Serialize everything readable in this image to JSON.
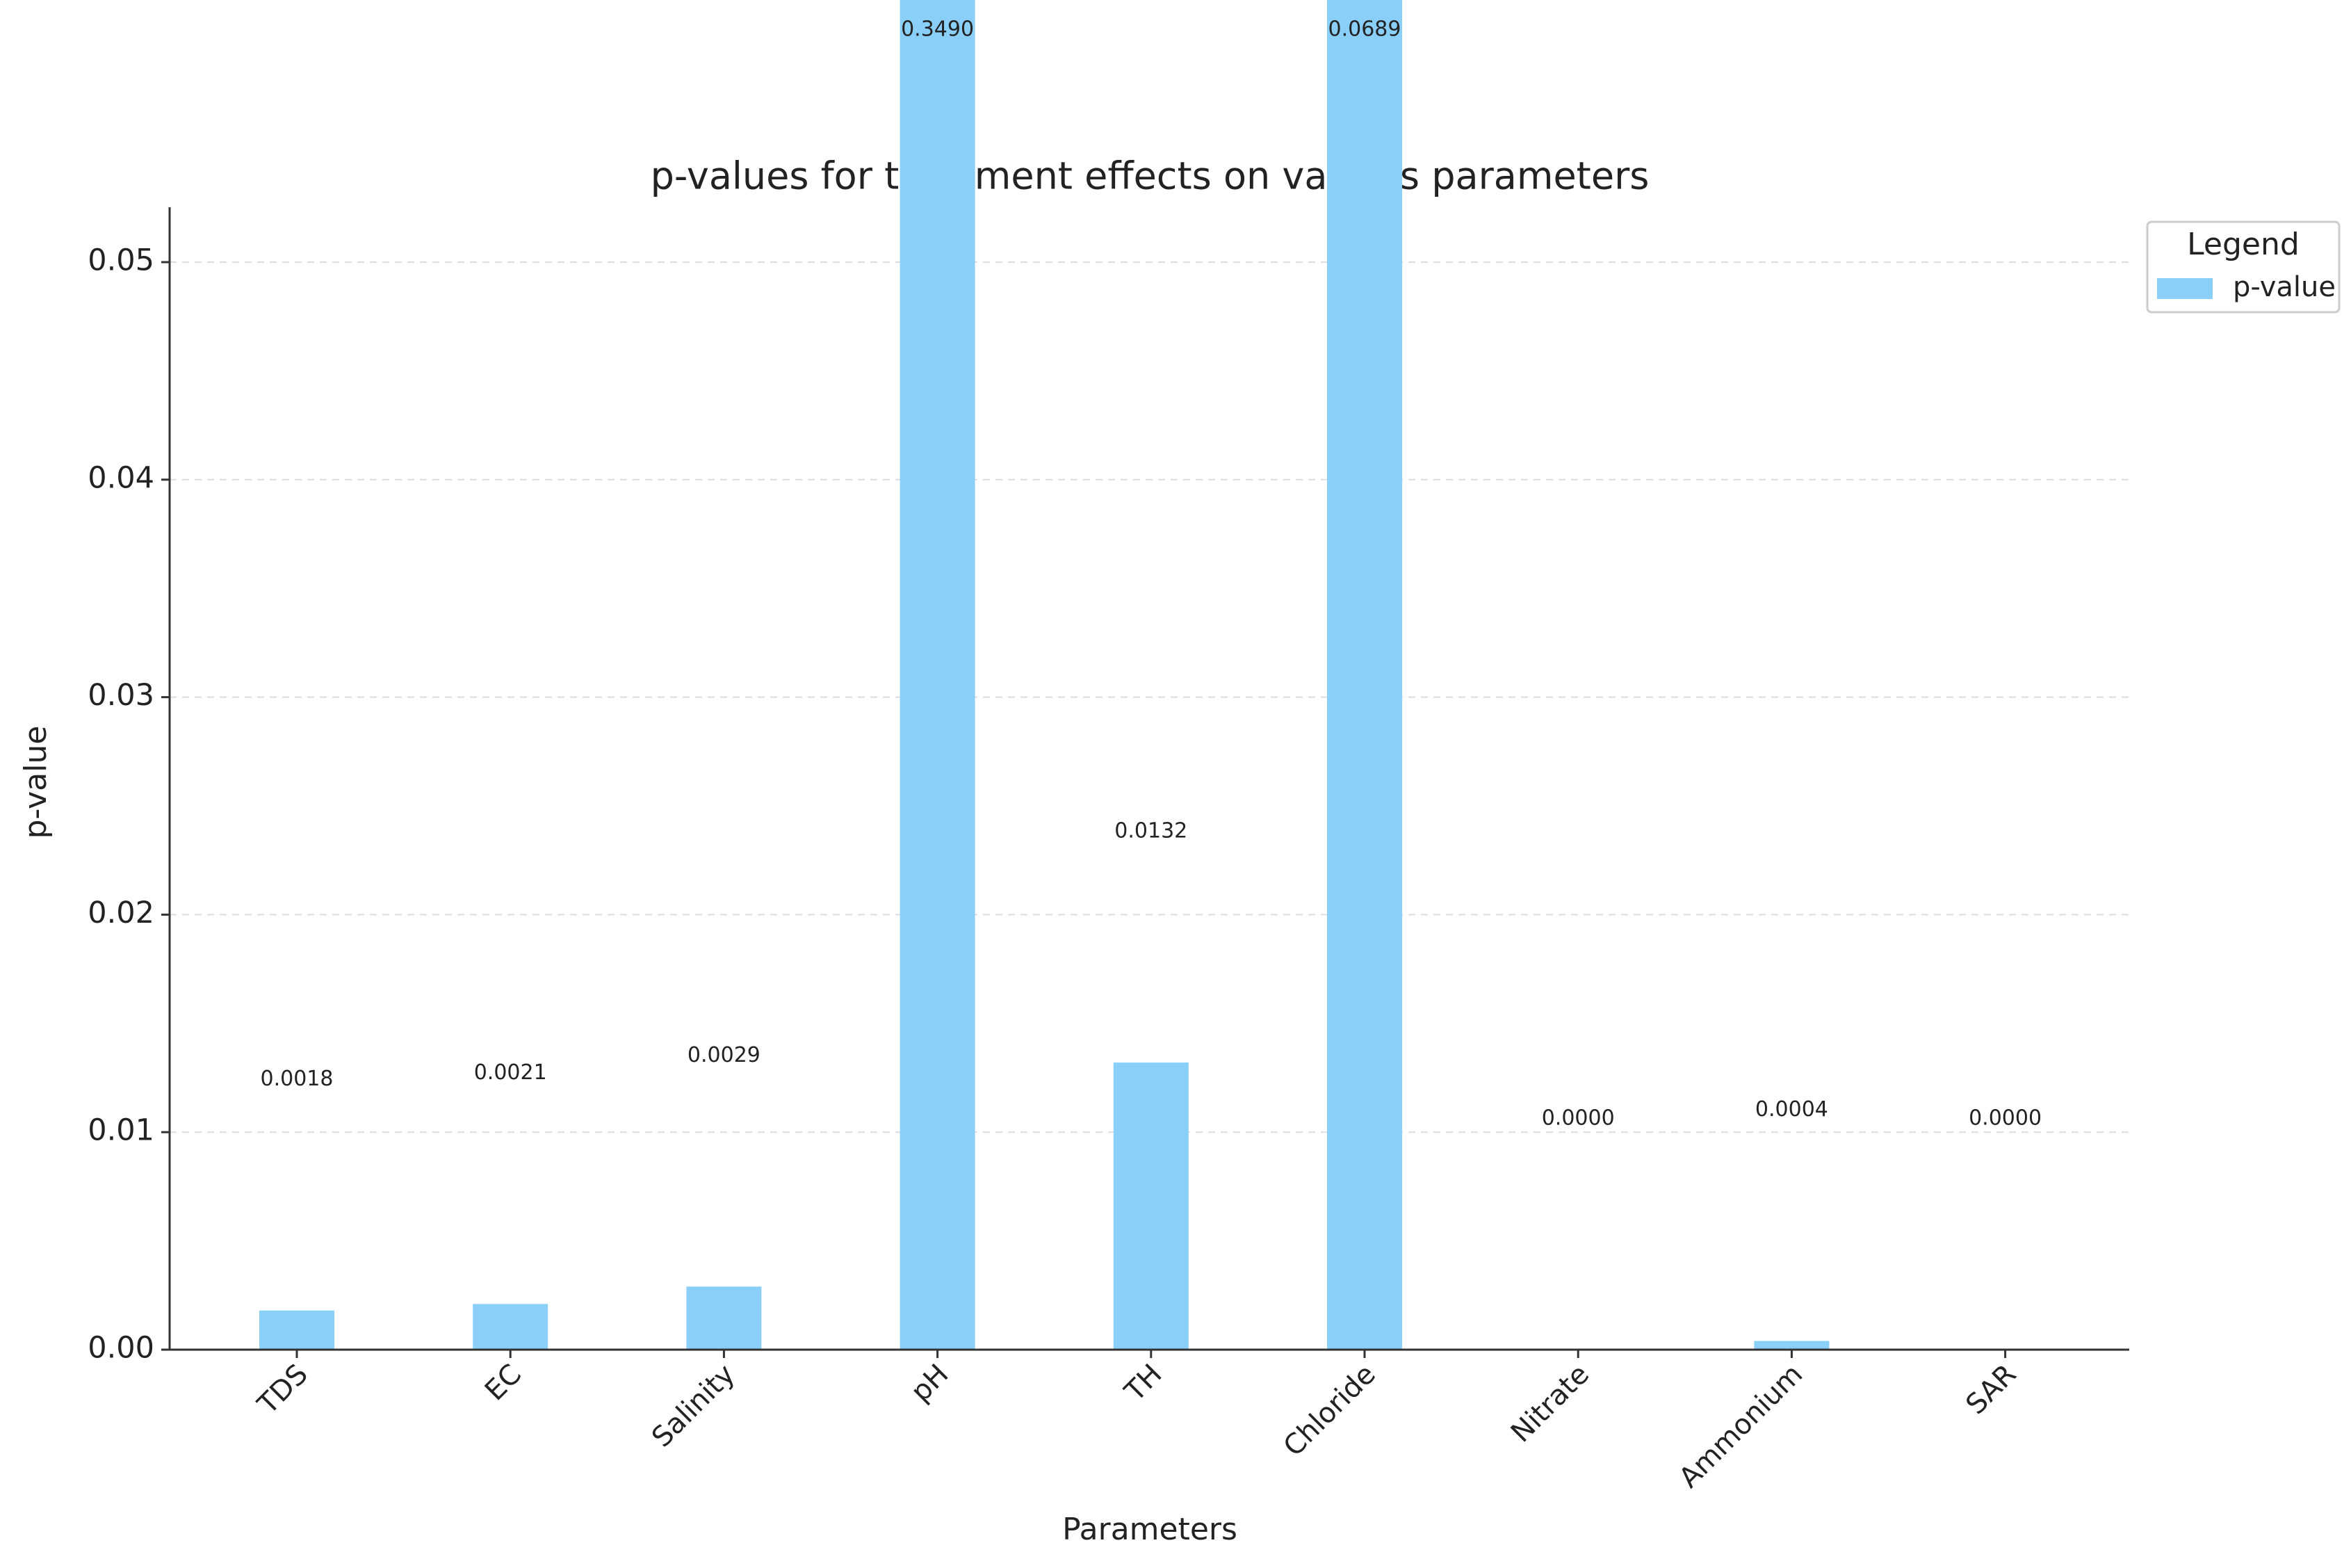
{
  "chart_data": {
    "type": "bar",
    "title": "p-values for treatment effects on various parameters",
    "x_label": "Parameters",
    "y_label": "p-value",
    "categories": [
      "TDS",
      "EC",
      "Salinity",
      "pH",
      "TH",
      "Chloride",
      "Nitrate",
      "Ammonium",
      "SAR"
    ],
    "series": [
      {
        "name": "p-value",
        "color": "#89cff8",
        "values": [
          0.0018,
          0.0021,
          0.0029,
          0.349,
          0.0132,
          0.0689,
          0,
          0.0004,
          0
        ],
        "value_labels": [
          "0.0018",
          "0.0021",
          "0.0029",
          "0.3490",
          "0.0132",
          "0.0689",
          "0.0000",
          "0.0004",
          "0.0000"
        ]
      }
    ],
    "ylim": [
      0,
      0.05
    ],
    "yticks": [
      {
        "value": 0,
        "label": "0.00"
      },
      0.01,
      0.02,
      0.03,
      0.04,
      0.05
    ],
    "grid": true,
    "legend_title": "Legend",
    "legend_position": "upper right"
  }
}
